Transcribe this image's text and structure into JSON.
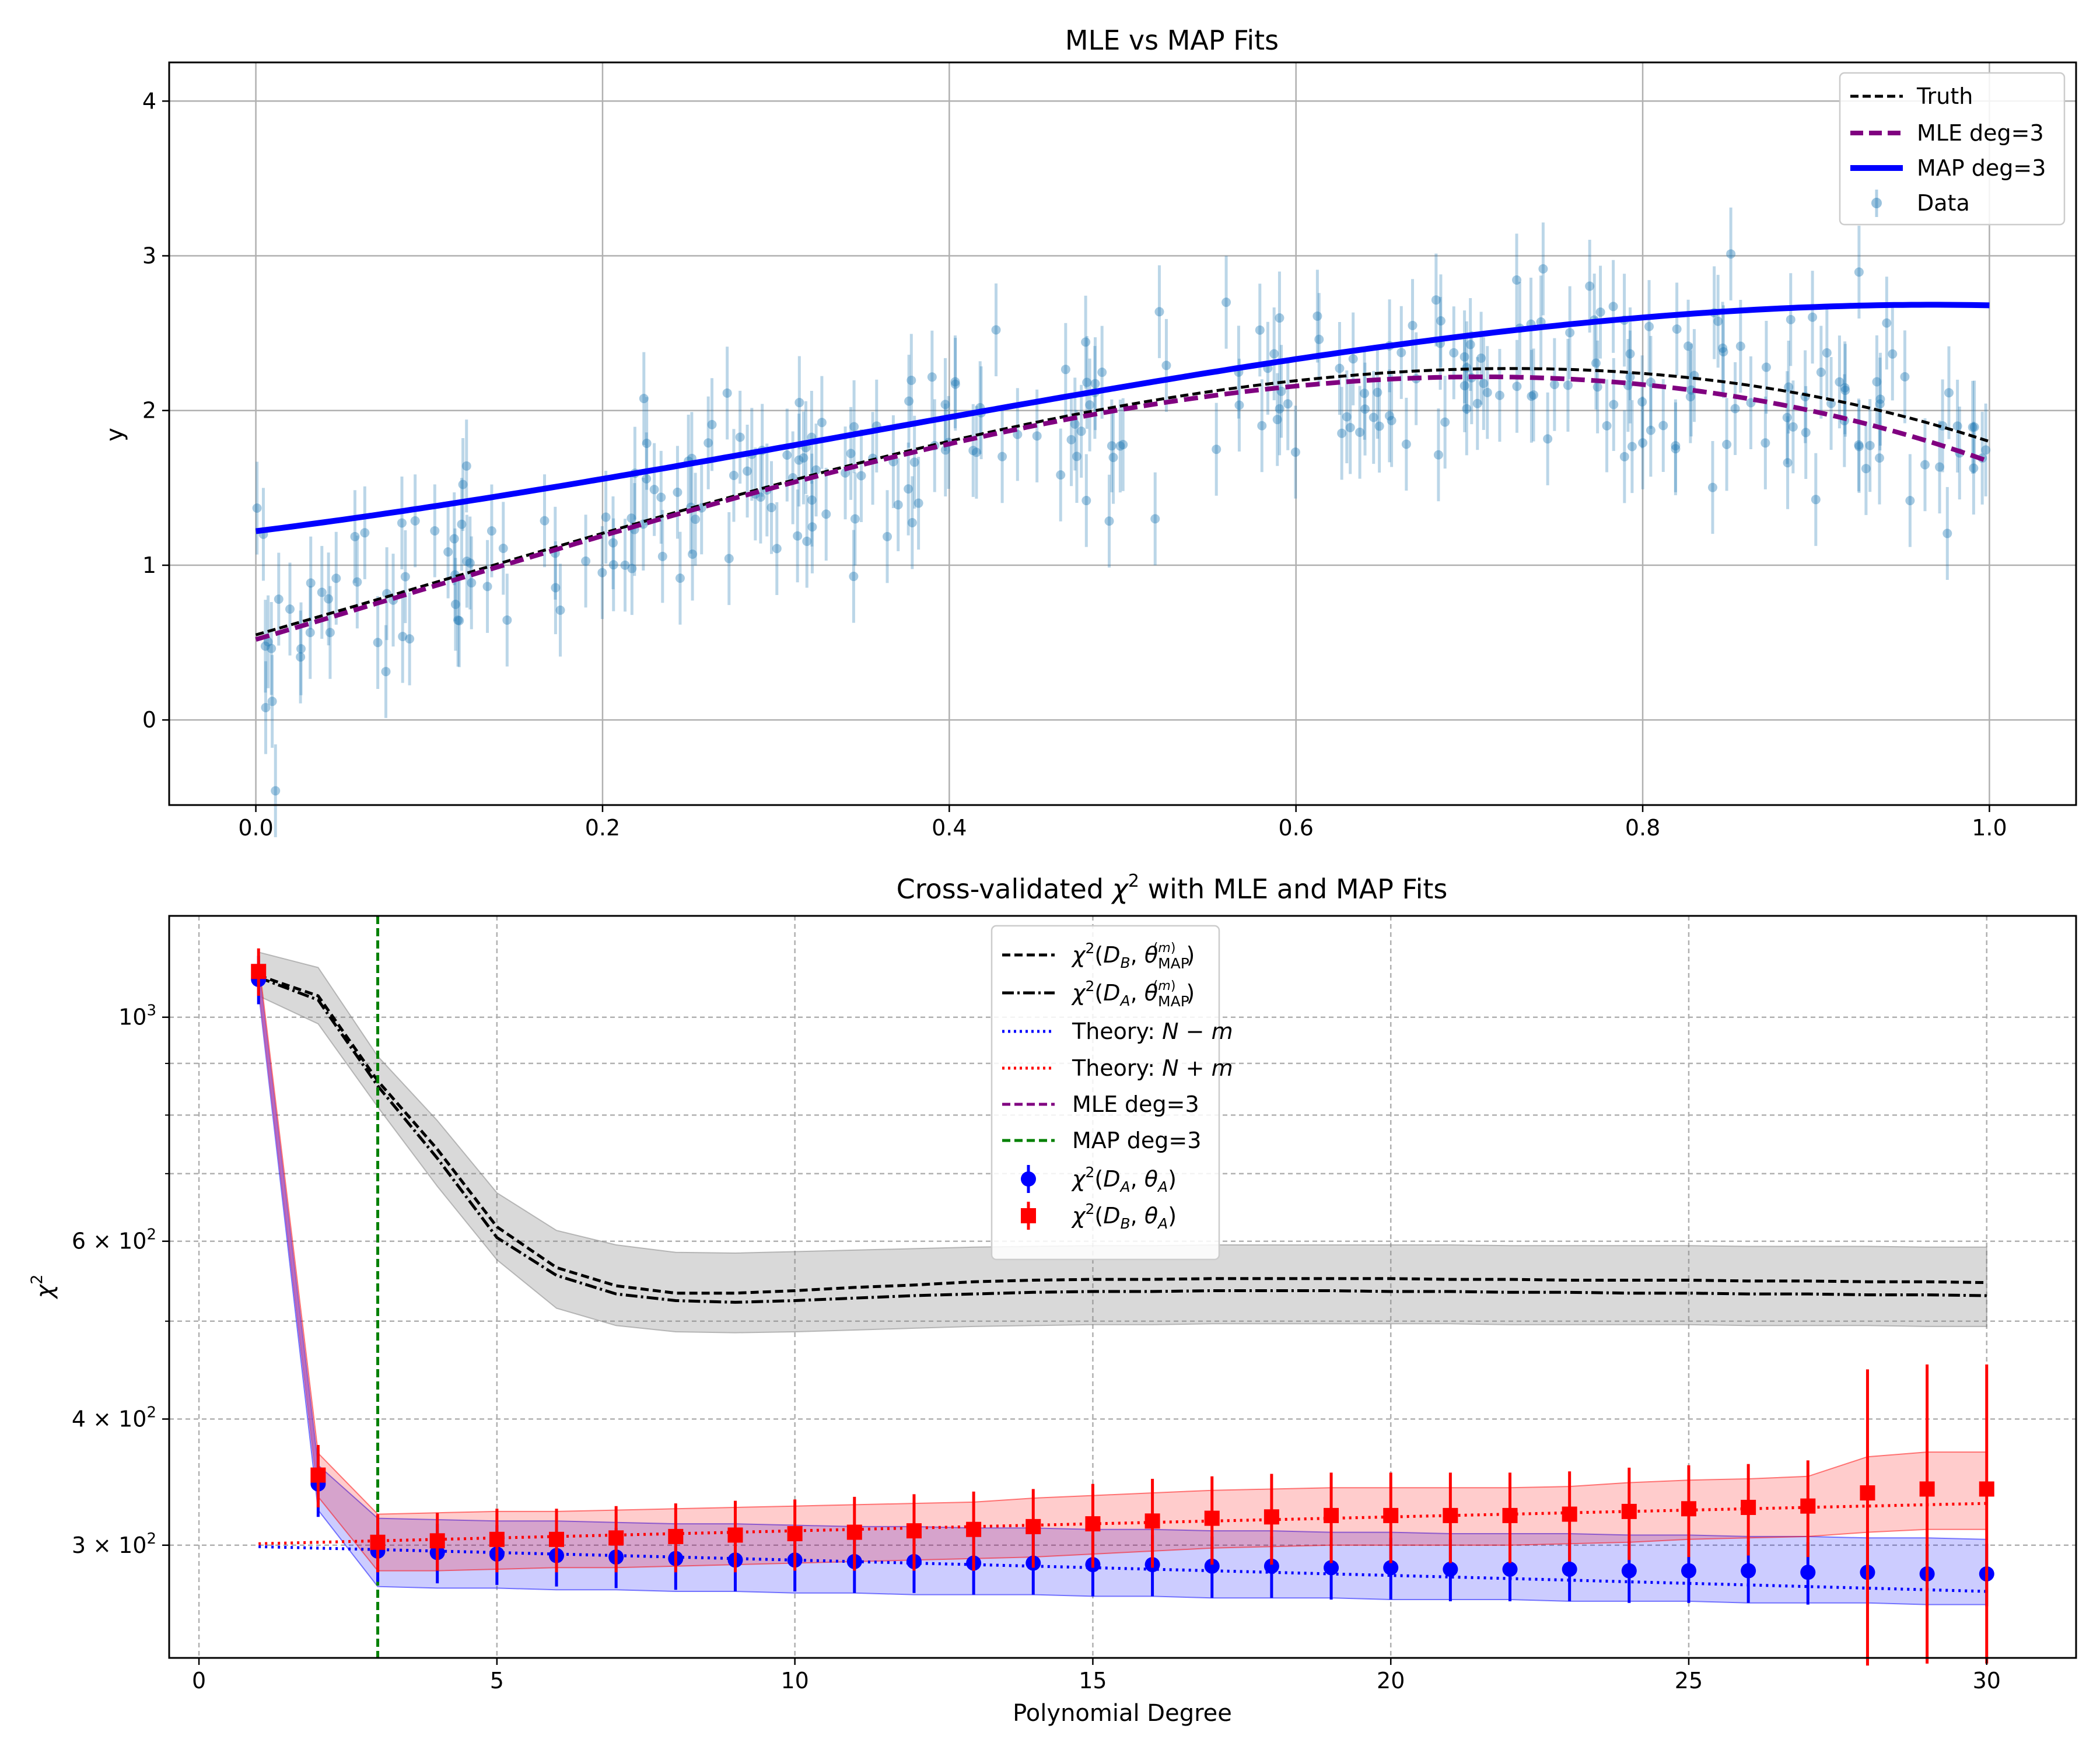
{
  "chart_data": [
    {
      "type": "scatter",
      "title": "MLE vs MAP Fits",
      "xlabel": "",
      "ylabel": "y",
      "xlim": [
        -0.05,
        1.05
      ],
      "ylim": [
        -0.55,
        4.25
      ],
      "xticks": [
        0.0,
        0.2,
        0.4,
        0.6,
        0.8,
        1.0
      ],
      "xtick_labels": [
        "0.0",
        "0.2",
        "0.4",
        "0.6",
        "0.8",
        "1.0"
      ],
      "yticks": [
        0,
        1,
        2,
        3,
        4
      ],
      "ytick_labels": [
        "0",
        "1",
        "2",
        "3",
        "4"
      ],
      "grid": true,
      "legend_position": "top-right",
      "legend": [
        "Truth",
        "MLE deg=3",
        "MAP deg=3",
        "Data"
      ],
      "series": [
        {
          "name": "Truth",
          "style": "dashed",
          "color": "#000000",
          "function": "cubic",
          "coefficients": [
            0.55,
            3.2,
            1.0,
            -2.95
          ]
        },
        {
          "name": "MLE deg=3",
          "style": "dashed",
          "color": "#800080",
          "function": "cubic",
          "coefficients": [
            0.52,
            3.3,
            0.85,
            -3.0
          ]
        },
        {
          "name": "MAP deg=3",
          "style": "solid",
          "color": "#0000ff",
          "function": "cubic",
          "coefficients": [
            1.22,
            1.4,
            1.8,
            -1.74
          ]
        },
        {
          "name": "Data",
          "color": "#1f77b4",
          "error": 0.3,
          "n_points": 300,
          "noise_sd": 0.3
        }
      ]
    },
    {
      "type": "line",
      "title": "Cross-validated χ² with MLE and MAP Fits",
      "title_main": "Cross-validated ",
      "title_sym": "χ",
      "title_sup": "2",
      "title_tail": " with MLE and MAP Fits",
      "xlabel": "Polynomial Degree",
      "ylabel": "χ²",
      "ylabel_sym": "χ",
      "ylabel_sup": "2",
      "yscale": "log",
      "xlim": [
        -0.5,
        31.5
      ],
      "ylim": [
        232,
        1260
      ],
      "xticks": [
        0,
        5,
        10,
        15,
        20,
        25,
        30
      ],
      "xtick_labels": [
        "0",
        "5",
        "10",
        "15",
        "20",
        "25",
        "30"
      ],
      "ytick_labels": [
        {
          "value": 300,
          "base": "3 × 10",
          "exp": "2"
        },
        {
          "value": 400,
          "base": "4 × 10",
          "exp": "2"
        },
        {
          "value": 600,
          "base": "6 × 10",
          "exp": "2"
        },
        {
          "value": 1000,
          "base": "10",
          "exp": "3"
        }
      ],
      "minor_grid": [
        500,
        700,
        800,
        900
      ],
      "grid": true,
      "legend_position": "top-center",
      "legend": [
        {
          "text": "χ²(D_B, θ_MAP^(m))",
          "style": "dashed",
          "color": "#000000"
        },
        {
          "text": "χ²(D_A, θ_MAP^(m))",
          "style": "dashdot",
          "color": "#000000"
        },
        {
          "text": "Theory: N − m",
          "style": "dotted",
          "color": "#0000ff"
        },
        {
          "text": "Theory: N + m",
          "style": "dotted",
          "color": "#ff0000"
        },
        {
          "text": "MLE deg=3",
          "style": "dashed",
          "color": "#800080"
        },
        {
          "text": "MAP deg=3",
          "style": "dashed",
          "color": "#008000"
        },
        {
          "text": "χ²(D_A, θ_A)",
          "style": "marker-circle",
          "color": "#0000ff"
        },
        {
          "text": "χ²(D_B, θ_A)",
          "style": "marker-square",
          "color": "#ff0000"
        }
      ],
      "vertical_line": {
        "x": 3,
        "color": "#008000",
        "label": "MAP deg=3"
      },
      "x": [
        1,
        2,
        3,
        4,
        5,
        6,
        7,
        8,
        9,
        10,
        11,
        12,
        13,
        14,
        15,
        16,
        17,
        18,
        19,
        20,
        21,
        22,
        23,
        24,
        25,
        26,
        27,
        28,
        29,
        30
      ],
      "series": [
        {
          "name": "χ²(D_B, θ_MAP^(m))",
          "style": "dashed",
          "color": "#000000",
          "values": [
            1100,
            1050,
            865,
            740,
            620,
            565,
            542,
            533,
            533,
            536,
            540,
            543,
            547,
            549,
            550,
            550,
            551,
            551,
            551,
            551,
            550,
            550,
            549,
            549,
            549,
            548,
            548,
            547,
            547,
            546
          ]
        },
        {
          "name": "χ²(D_A, θ_MAP^(m))",
          "style": "dashdot",
          "color": "#000000",
          "values": [
            1095,
            1040,
            855,
            725,
            605,
            555,
            532,
            524,
            522,
            524,
            527,
            530,
            532,
            534,
            535,
            535,
            536,
            536,
            536,
            535,
            535,
            534,
            534,
            533,
            533,
            532,
            532,
            531,
            531,
            530
          ]
        },
        {
          "name": "MAP band",
          "color": "#808080",
          "lower": [
            1050,
            985,
            815,
            680,
            575,
            515,
            495,
            488,
            487,
            488,
            490,
            492,
            494,
            495,
            496,
            496,
            497,
            497,
            497,
            497,
            497,
            496,
            496,
            496,
            496,
            495,
            495,
            495,
            494,
            494
          ],
          "upper": [
            1160,
            1120,
            915,
            790,
            670,
            615,
            595,
            585,
            584,
            586,
            588,
            590,
            592,
            593,
            594,
            594,
            595,
            595,
            595,
            595,
            595,
            594,
            594,
            594,
            594,
            593,
            593,
            593,
            592,
            592
          ]
        },
        {
          "name": "Theory: N − m",
          "style": "dotted",
          "color": "#0000ff",
          "values": [
            299,
            298,
            297,
            296,
            295,
            294,
            293,
            292,
            291,
            290,
            289,
            288,
            287,
            286,
            285,
            284,
            283,
            282,
            281,
            280,
            279,
            278,
            277,
            276,
            275,
            274,
            273,
            272,
            271,
            270
          ]
        },
        {
          "name": "Theory: N + m",
          "style": "dotted",
          "color": "#ff0000",
          "values": [
            301,
            302,
            303,
            304,
            305,
            306,
            307,
            308,
            309,
            310,
            311,
            312,
            313,
            314,
            315,
            316,
            317,
            318,
            319,
            320,
            321,
            322,
            323,
            324,
            325,
            326,
            327,
            328,
            329,
            330
          ]
        },
        {
          "name": "χ²(D_A, θ_A)",
          "marker": "circle",
          "color": "#0000ff",
          "values": [
            1090,
            345,
            296,
            295,
            294,
            293,
            292,
            291,
            290,
            290,
            289,
            289,
            288,
            288,
            287,
            287,
            286,
            286,
            285,
            285,
            284,
            284,
            284,
            283,
            283,
            283,
            282,
            282,
            281,
            281
          ],
          "errors": [
            60,
            25,
            20,
            20,
            20,
            20,
            20,
            20,
            20,
            20,
            20,
            20,
            20,
            20,
            20,
            20,
            20,
            20,
            20,
            20,
            20,
            20,
            20,
            20,
            20,
            20,
            20,
            20,
            20,
            20
          ],
          "band_lower": [
            1060,
            325,
            273,
            272,
            272,
            271,
            271,
            270,
            270,
            269,
            269,
            268,
            268,
            268,
            267,
            267,
            266,
            266,
            266,
            265,
            265,
            265,
            264,
            264,
            264,
            263,
            263,
            263,
            262,
            262
          ],
          "band_upper": [
            1120,
            360,
            319,
            318,
            317,
            317,
            316,
            315,
            315,
            314,
            313,
            313,
            312,
            312,
            311,
            311,
            310,
            310,
            309,
            309,
            308,
            308,
            308,
            307,
            307,
            306,
            306,
            305,
            305,
            304
          ]
        },
        {
          "name": "χ²(D_B, θ_A)",
          "marker": "square",
          "color": "#ff0000",
          "values": [
            1110,
            352,
            302,
            303,
            304,
            304,
            305,
            306,
            307,
            308,
            309,
            310,
            311,
            313,
            315,
            317,
            319,
            320,
            321,
            321,
            321,
            321,
            322,
            324,
            326,
            327,
            328,
            338,
            341,
            341
          ],
          "errors": [
            60,
            25,
            20,
            20,
            22,
            22,
            23,
            24,
            25,
            25,
            26,
            27,
            28,
            28,
            30,
            32,
            32,
            33,
            33,
            33,
            33,
            33,
            33,
            34,
            34,
            34,
            36,
            110,
            112,
            112
          ],
          "band_lower": [
            1080,
            335,
            283,
            283,
            284,
            285,
            285,
            286,
            287,
            288,
            289,
            290,
            291,
            292,
            294,
            296,
            298,
            299,
            300,
            300,
            300,
            300,
            301,
            302,
            304,
            305,
            306,
            309,
            311,
            311
          ],
          "band_upper": [
            1140,
            370,
            322,
            323,
            324,
            324,
            325,
            326,
            327,
            328,
            329,
            330,
            331,
            334,
            336,
            338,
            340,
            341,
            342,
            342,
            342,
            342,
            343,
            346,
            348,
            349,
            351,
            367,
            371,
            371
          ]
        }
      ]
    }
  ]
}
